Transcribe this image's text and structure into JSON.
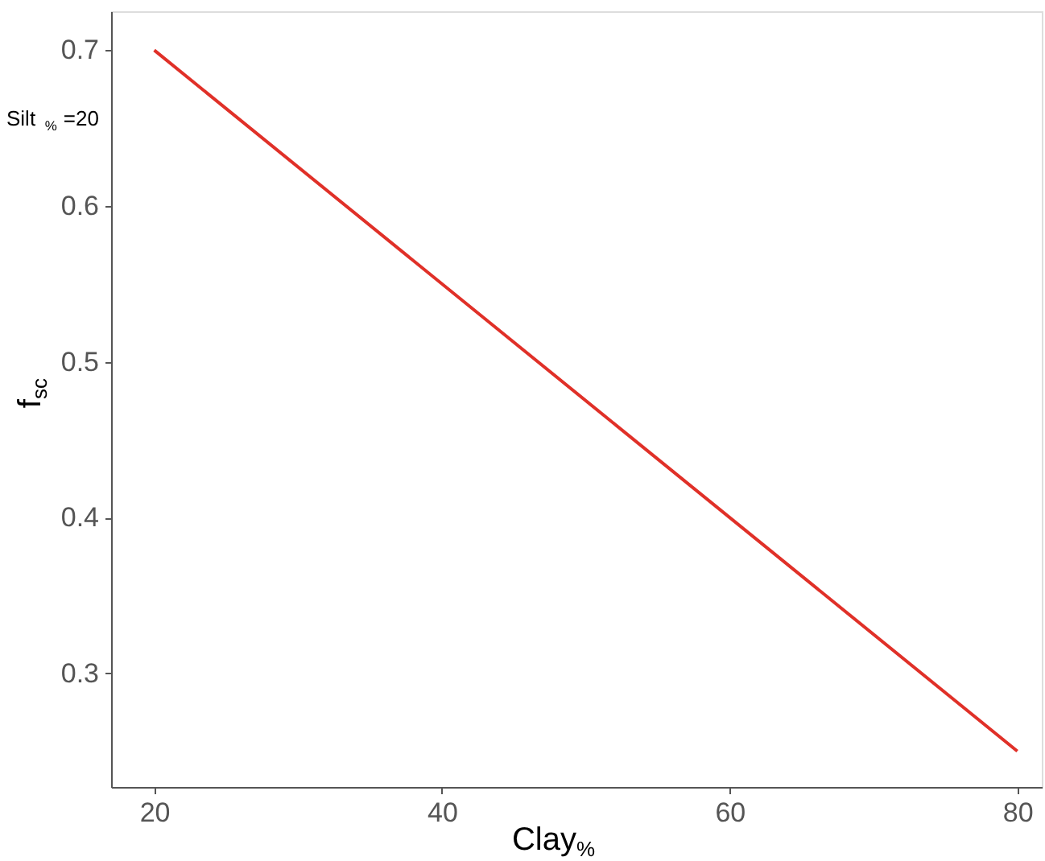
{
  "chart_data": {
    "type": "line",
    "xlabel": "Clay$_{%}$",
    "ylabel": "f$_{sc}$",
    "x": [
      20,
      80
    ],
    "series": [
      {
        "color": "#e03028",
        "values": [
          0.7,
          0.25
        ]
      }
    ],
    "xlim": [
      17,
      81.7
    ],
    "xticks": [
      20,
      40,
      60,
      80
    ],
    "ylim": [
      0.227,
      0.725
    ],
    "yticks": [
      0.3,
      0.4,
      0.5,
      0.6,
      0.7
    ],
    "grid": false,
    "marker": "none",
    "line_style": "solid",
    "annotations": [
      "Silt$_{%}$ =20"
    ]
  }
}
